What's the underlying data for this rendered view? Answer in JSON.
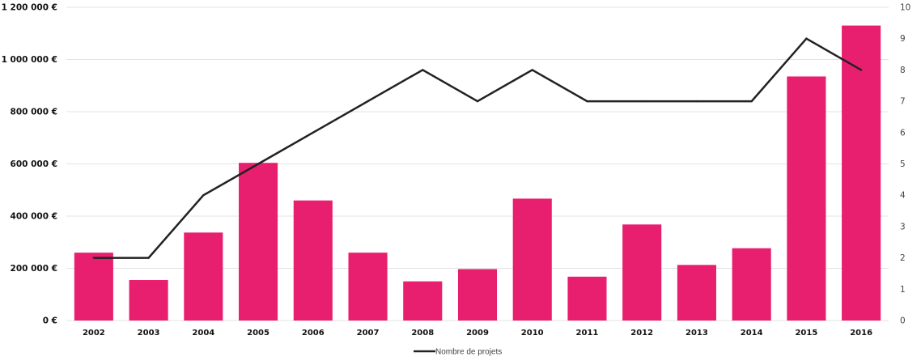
{
  "chart_data": {
    "type": "bar",
    "title": "",
    "xlabel": "",
    "ylabel": "",
    "categories": [
      "2002",
      "2003",
      "2004",
      "2005",
      "2006",
      "2007",
      "2008",
      "2009",
      "2010",
      "2011",
      "2012",
      "2013",
      "2014",
      "2015",
      "2016"
    ],
    "series": [
      {
        "type": "bar",
        "axis": "left",
        "color": "#E81F6F",
        "values": [
          260000,
          155000,
          337000,
          604000,
          460000,
          260000,
          150000,
          197000,
          467000,
          168000,
          368000,
          213000,
          277000,
          935000,
          1130000
        ]
      },
      {
        "type": "line",
        "axis": "right",
        "name": "Nombre de projets",
        "color": "#222222",
        "values": [
          2,
          2,
          4,
          5,
          6,
          7,
          8,
          7,
          8,
          7,
          7,
          7,
          7,
          9,
          8
        ]
      }
    ],
    "ylim_left": [
      0,
      1200000
    ],
    "ylim_right": [
      0,
      10
    ],
    "left_ticks": [
      {
        "value": 0,
        "label": "0 €"
      },
      {
        "value": 200000,
        "label": "200 000 €"
      },
      {
        "value": 400000,
        "label": "400 000 €"
      },
      {
        "value": 600000,
        "label": "600 000 €"
      },
      {
        "value": 800000,
        "label": "800 000 €"
      },
      {
        "value": 1000000,
        "label": "1 000 000 €"
      },
      {
        "value": 1200000,
        "label": "1 200 000 €"
      }
    ],
    "right_ticks": [
      {
        "value": 0,
        "label": "0"
      },
      {
        "value": 1,
        "label": "1"
      },
      {
        "value": 2,
        "label": "2"
      },
      {
        "value": 3,
        "label": "3"
      },
      {
        "value": 4,
        "label": "4"
      },
      {
        "value": 5,
        "label": "5"
      },
      {
        "value": 6,
        "label": "6"
      },
      {
        "value": 7,
        "label": "7"
      },
      {
        "value": 8,
        "label": "8"
      },
      {
        "value": 9,
        "label": "9"
      },
      {
        "value": 10,
        "label": "10"
      }
    ],
    "grid": true,
    "legend": {
      "position": "bottom",
      "entries": [
        "Nombre de projets"
      ]
    }
  }
}
